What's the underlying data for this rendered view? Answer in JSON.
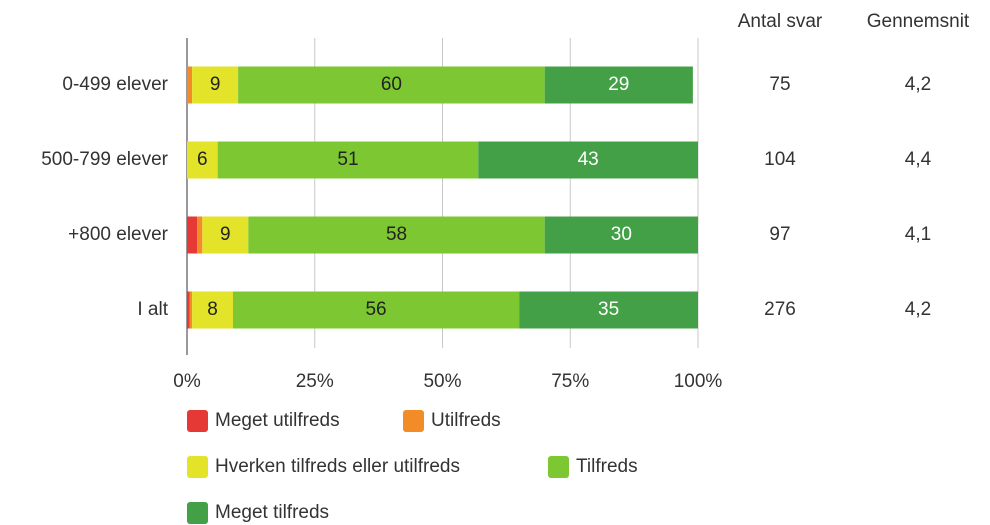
{
  "chart_data": {
    "type": "stacked-bar-horizontal",
    "categories": [
      "0-499 elever",
      "500-799 elever",
      "+800 elever",
      "I alt"
    ],
    "series": [
      {
        "name": "Meget utilfreds",
        "color": "#e53935",
        "values": [
          0,
          0,
          2,
          0.5
        ]
      },
      {
        "name": "Utilfreds",
        "color": "#f28c28",
        "values": [
          1,
          0,
          1,
          0.5
        ]
      },
      {
        "name": "Hverken tilfreds eller utilfreds",
        "color": "#e3e32a",
        "values": [
          9,
          6,
          9,
          8
        ]
      },
      {
        "name": "Tilfreds",
        "color": "#7dc832",
        "values": [
          60,
          51,
          58,
          56
        ]
      },
      {
        "name": "Meget tilfreds",
        "color": "#43a047",
        "values": [
          29,
          43,
          30,
          35
        ]
      }
    ],
    "xlim": [
      0,
      100
    ],
    "xticks": [
      {
        "value": 0,
        "label": "0%"
      },
      {
        "value": 25,
        "label": "25%"
      },
      {
        "value": 50,
        "label": "50%"
      },
      {
        "value": 75,
        "label": "75%"
      },
      {
        "value": 100,
        "label": "100%"
      }
    ],
    "grid": true,
    "legend": "bottom",
    "columns": [
      {
        "header": "Antal svar",
        "values": [
          "75",
          "104",
          "97",
          "276"
        ]
      },
      {
        "header": "Gennemsnit",
        "values": [
          "4,2",
          "4,4",
          "4,1",
          "4,2"
        ]
      }
    ]
  }
}
